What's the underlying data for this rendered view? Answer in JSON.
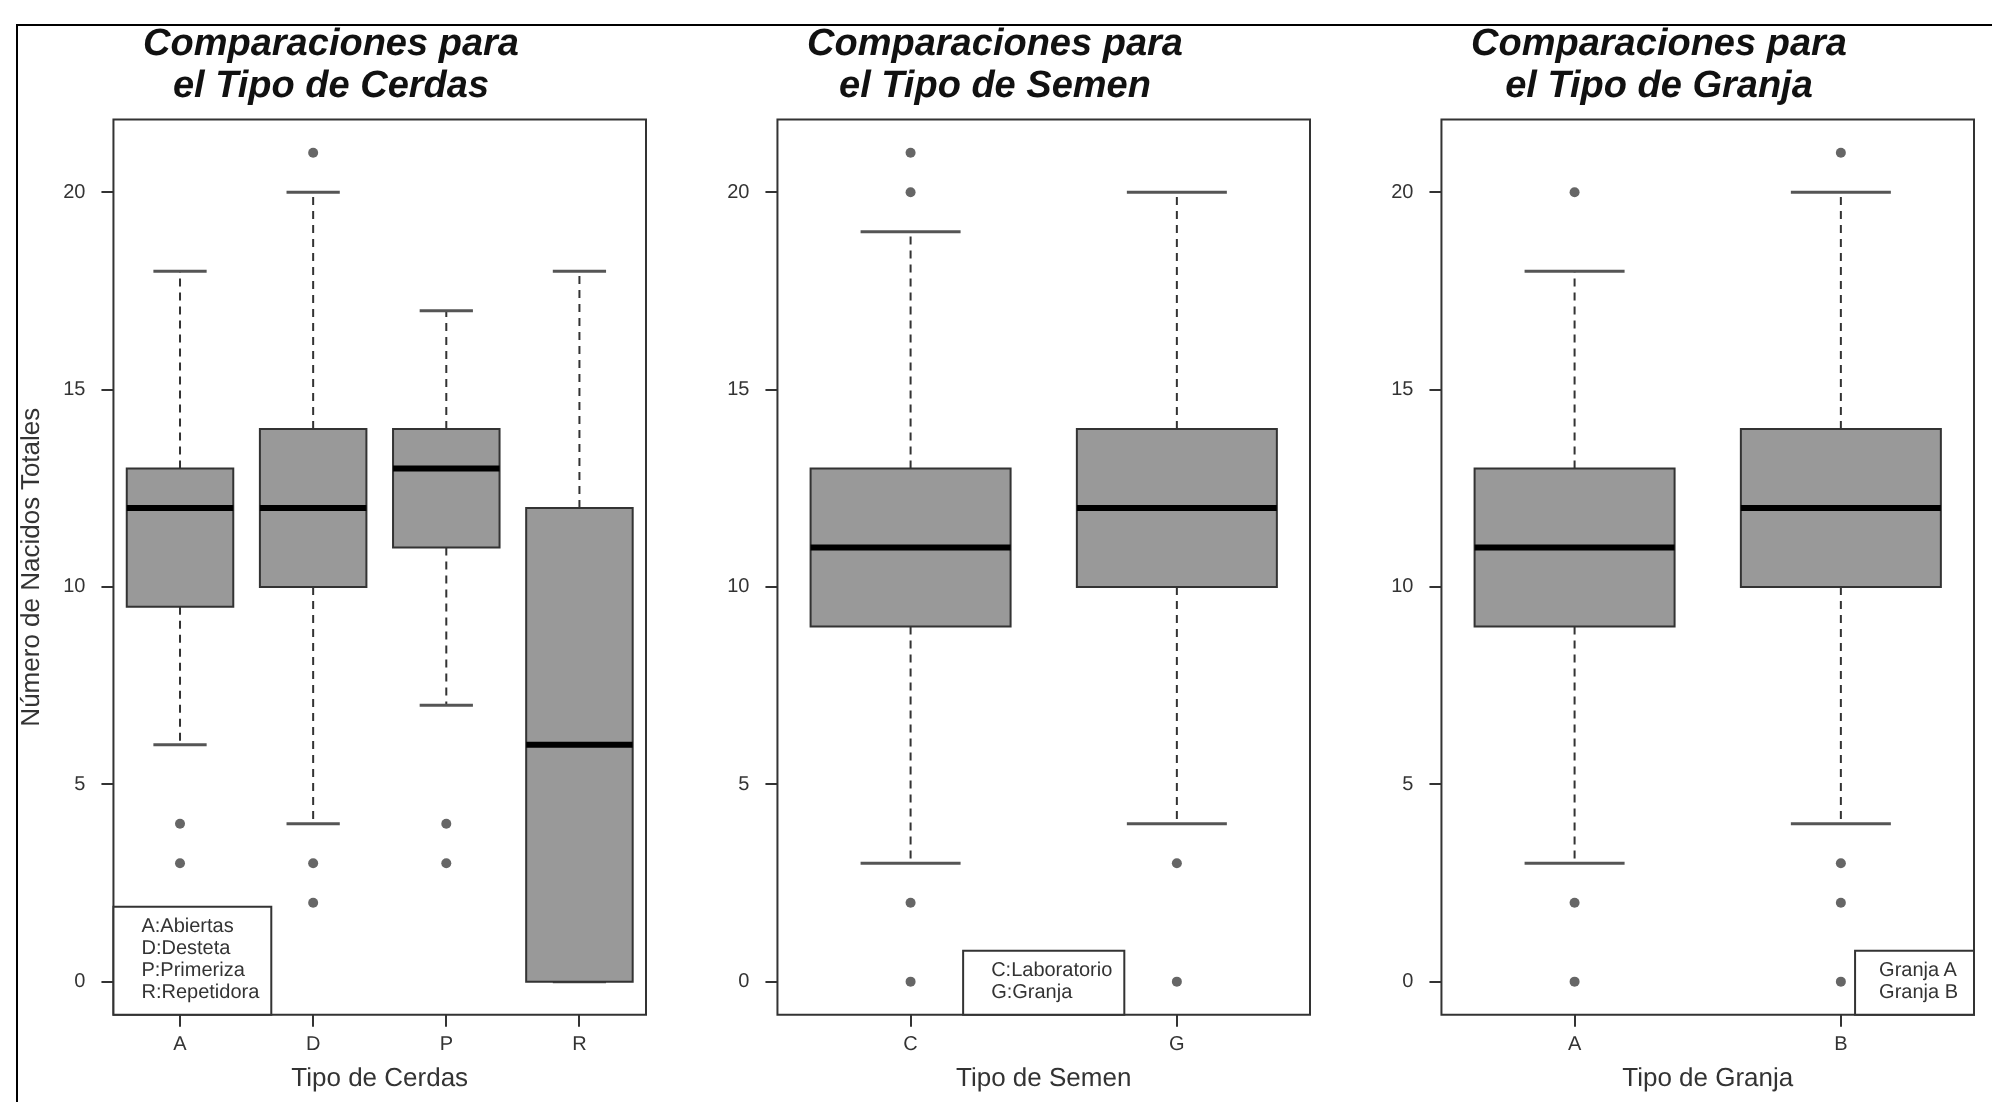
{
  "chart_data": [
    {
      "type": "box",
      "title": "Comparaciones para\nel Tipo de Cerdas",
      "xlabel": "Tipo de Cerdas",
      "ylabel": "Número de Nacidos Totales",
      "categories": [
        "A",
        "D",
        "P",
        "R"
      ],
      "series": [
        {
          "color": "#999999",
          "boxes": [
            {
              "low": 6,
              "q1": 9.5,
              "median": 12,
              "q3": 13,
              "high": 18,
              "outliers": [
                4,
                3
              ]
            },
            {
              "low": 4,
              "q1": 10,
              "median": 12,
              "q3": 14,
              "high": 20,
              "outliers": [
                21,
                3,
                2
              ]
            },
            {
              "low": 7,
              "q1": 11,
              "median": 13,
              "q3": 14,
              "high": 17,
              "outliers": [
                4,
                3
              ]
            },
            {
              "low": 0,
              "q1": 0,
              "median": 6,
              "q3": 12,
              "high": 18
            }
          ]
        }
      ],
      "ylim": [
        -0.84,
        21.84
      ],
      "yticks": [
        0,
        5,
        10,
        15,
        20
      ],
      "annotations": [
        "A:Abiertas\nD:Desteta\nP:Primeriza\nR:Repetidora"
      ]
    },
    {
      "type": "box",
      "title": "Comparaciones para\nel Tipo de Semen",
      "xlabel": "Tipo de Semen",
      "categories": [
        "C",
        "G"
      ],
      "series": [
        {
          "color": "#999999",
          "boxes": [
            {
              "low": 3,
              "q1": 9,
              "median": 11,
              "q3": 13,
              "high": 19,
              "outliers": [
                21,
                20,
                2,
                0
              ]
            },
            {
              "low": 4,
              "q1": 10,
              "median": 12,
              "q3": 14,
              "high": 20,
              "outliers": [
                3,
                0
              ]
            }
          ]
        }
      ],
      "ylim": [
        -0.84,
        21.84
      ],
      "yticks": [
        0,
        5,
        10,
        15,
        20
      ],
      "annotations": [
        "C:Laboratorio\nG:Granja"
      ]
    },
    {
      "type": "box",
      "title": "Comparaciones para\nel Tipo de Granja",
      "xlabel": "Tipo de Granja",
      "categories": [
        "A",
        "B"
      ],
      "series": [
        {
          "color": "#999999",
          "boxes": [
            {
              "low": 3,
              "q1": 9,
              "median": 11,
              "q3": 13,
              "high": 18,
              "outliers": [
                20,
                2,
                0
              ]
            },
            {
              "low": 4,
              "q1": 10,
              "median": 12,
              "q3": 14,
              "high": 20,
              "outliers": [
                21,
                3,
                2,
                0
              ]
            }
          ]
        }
      ],
      "ylim": [
        -0.84,
        21.84
      ],
      "yticks": [
        0,
        5,
        10,
        15,
        20
      ],
      "annotations": [
        "Granja A\nGranja B"
      ]
    }
  ]
}
